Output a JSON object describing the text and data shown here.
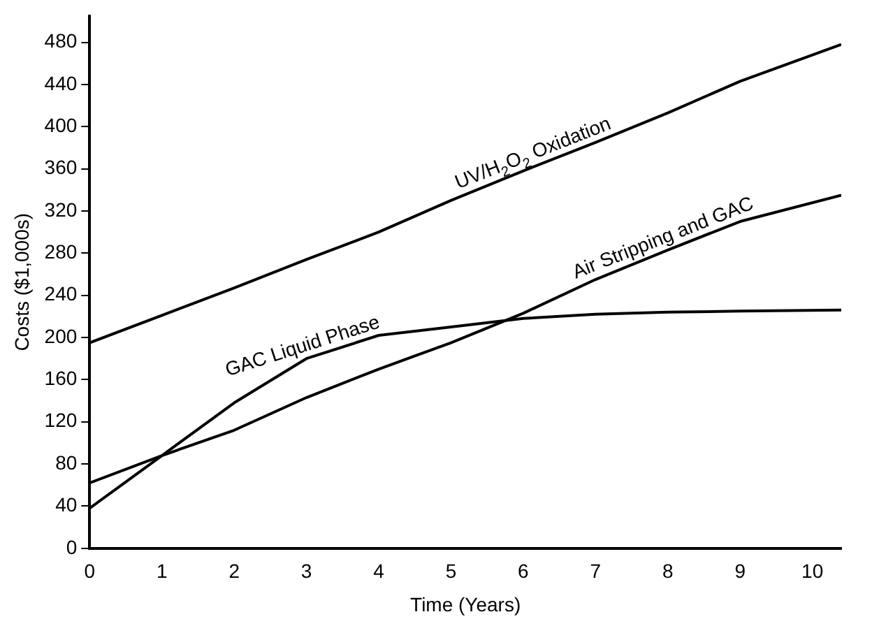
{
  "chart_data": {
    "type": "line",
    "xlabel": "Time (Years)",
    "ylabel": "Costs ($1,000s)",
    "xlim": [
      0,
      10.4
    ],
    "ylim": [
      0,
      505
    ],
    "xticks": [
      0,
      1,
      2,
      3,
      4,
      5,
      6,
      7,
      8,
      9,
      10
    ],
    "yticks": [
      0,
      40,
      80,
      120,
      160,
      200,
      240,
      280,
      320,
      360,
      400,
      440,
      480
    ],
    "grid": false,
    "legend": false,
    "marker": "none",
    "line_style": "solid",
    "x": [
      0,
      1,
      2,
      3,
      4,
      5,
      6,
      7,
      8,
      9,
      10.4
    ],
    "series": [
      {
        "name": "UV/H$_{2}$O$_{2}$ Oxidation",
        "color": "#000000",
        "values": [
          195,
          221,
          247,
          274,
          300,
          330,
          358,
          385,
          413,
          443,
          478
        ]
      },
      {
        "name": "Air Stripping and GAC",
        "color": "#000000",
        "values": [
          62,
          88,
          112,
          143,
          170,
          195,
          223,
          255,
          283,
          310,
          335
        ]
      },
      {
        "name": "GAC Liquid Phase",
        "color": "#000000",
        "values": [
          38,
          88,
          138,
          180,
          202,
          210,
          218,
          222,
          224,
          225,
          226
        ]
      }
    ]
  }
}
